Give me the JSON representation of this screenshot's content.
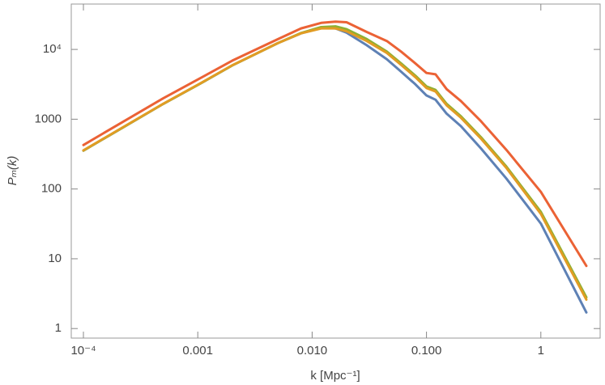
{
  "chart_data": {
    "type": "line",
    "x_label": "k [Mpc⁻¹]",
    "y_label": "Pₘ(k)",
    "x_log": true,
    "y_log": true,
    "xlim": [
      7.83e-05,
      3.3
    ],
    "ylim": [
      0.73,
      44700
    ],
    "xticks": [
      {
        "value": 0.0001,
        "label": "10⁻⁴"
      },
      0.001,
      {
        "value": 0.01,
        "label": "0.010"
      },
      {
        "value": 0.1,
        "label": "0.100"
      },
      1
    ],
    "yticks": [
      1,
      10,
      100,
      1000,
      {
        "value": 10000,
        "label": "10⁴"
      }
    ],
    "x": [
      0.0001,
      0.0002,
      0.0005,
      0.001,
      0.002,
      0.005,
      0.008,
      0.012,
      0.016,
      0.02,
      0.03,
      0.045,
      0.06,
      0.08,
      0.1,
      0.12,
      0.15,
      0.2,
      0.3,
      0.5,
      1,
      2.5
    ],
    "series": [
      {
        "color": "#5e81b5",
        "values": [
          355,
          690,
          1660,
          3090,
          5890,
          12300,
          17000,
          20400,
          20000,
          17400,
          11500,
          7240,
          4790,
          3160,
          2190,
          1900,
          1200,
          794,
          380,
          141,
          32,
          1.7
        ]
      },
      {
        "color": "#eb6235",
        "values": [
          427,
          832,
          2000,
          3700,
          6900,
          14000,
          20000,
          24000,
          25000,
          24500,
          17800,
          13200,
          9300,
          6300,
          4600,
          4400,
          2700,
          1820,
          933,
          363,
          91,
          7.9
        ]
      },
      {
        "color": "#8fb032",
        "values": [
          355,
          690,
          1660,
          3090,
          5890,
          12300,
          17200,
          20900,
          21400,
          19500,
          14100,
          9300,
          6300,
          4200,
          2950,
          2630,
          1660,
          1100,
          550,
          209,
          47,
          2.8
        ]
      },
      {
        "color": "#e19c24",
        "values": [
          358,
          695,
          1670,
          3110,
          5920,
          12300,
          17000,
          20000,
          20000,
          18200,
          13200,
          8900,
          6000,
          4000,
          2800,
          2500,
          1580,
          1050,
          525,
          200,
          44,
          2.6
        ]
      }
    ]
  }
}
